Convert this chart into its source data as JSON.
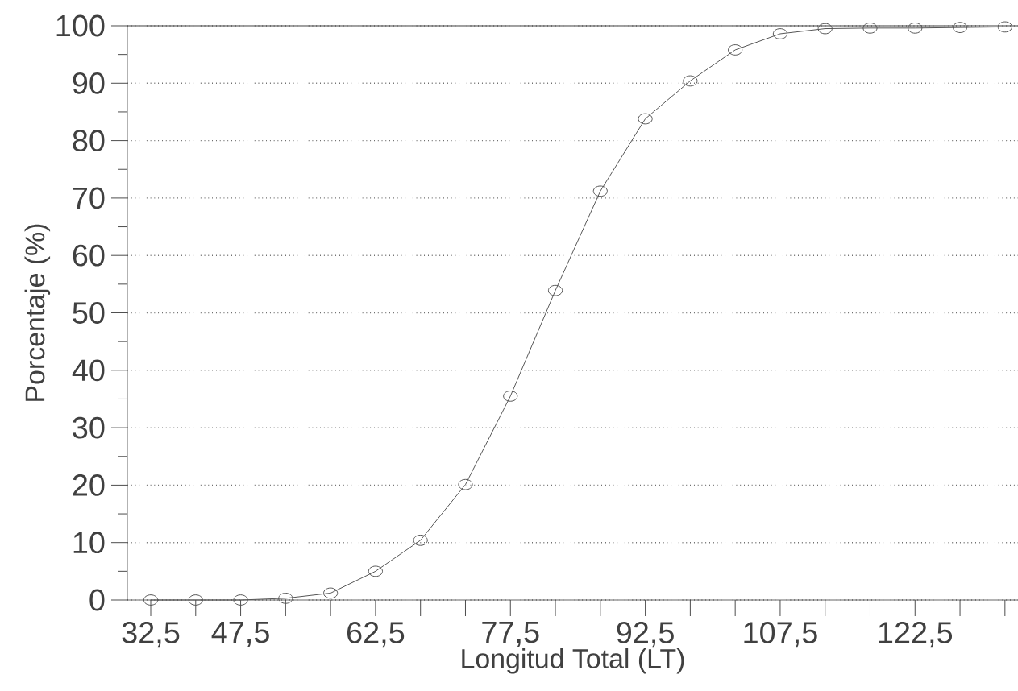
{
  "chart_data": {
    "type": "line",
    "xlabel": "Longitud Total (LT)",
    "ylabel": "Porcentaje (%)",
    "categories": [
      "32,5",
      null,
      "47,5",
      null,
      null,
      "62,5",
      null,
      null,
      "77,5",
      null,
      null,
      "92,5",
      null,
      null,
      "107,5",
      null,
      null,
      "122,5",
      null,
      null
    ],
    "series": [
      {
        "color": "#555555",
        "values": [
          0,
          0,
          0,
          0.3,
          1.2,
          5,
          10.4,
          20.1,
          35.5,
          53.9,
          71.2,
          83.8,
          90.4,
          95.8,
          98.6,
          99.5,
          99.6,
          99.6,
          99.7,
          99.8
        ]
      }
    ],
    "ylim": [
      0,
      100
    ],
    "yticks": [
      0,
      10,
      20,
      30,
      40,
      50,
      60,
      70,
      80,
      90,
      100
    ],
    "grid": "y",
    "marker": "circle",
    "line_style": "solid"
  }
}
